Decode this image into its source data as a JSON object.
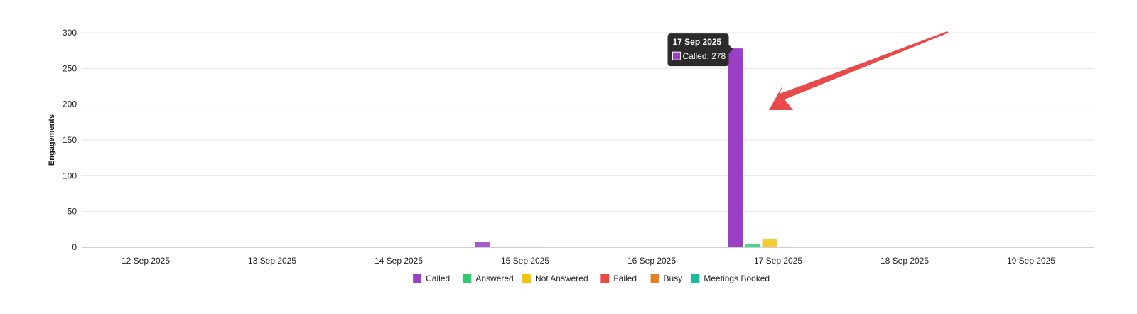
{
  "chart_data": {
    "type": "bar",
    "ylabel": "Engagements",
    "xlabel": "",
    "ylim": [
      0,
      300
    ],
    "yticks": [
      0,
      50,
      100,
      150,
      200,
      250,
      300
    ],
    "grid": true,
    "legend_position": "bottom",
    "categories": [
      "12 Sep 2025",
      "13 Sep 2025",
      "14 Sep 2025",
      "15 Sep 2025",
      "16 Sep 2025",
      "17 Sep 2025",
      "18 Sep 2025",
      "19 Sep 2025"
    ],
    "series": [
      {
        "name": "Called",
        "color": "#9b3fc4",
        "values": [
          0,
          0,
          0,
          7,
          0,
          278,
          0,
          0
        ]
      },
      {
        "name": "Answered",
        "color": "#2ecc71",
        "values": [
          0,
          0,
          0,
          1,
          0,
          4,
          0,
          0
        ]
      },
      {
        "name": "Not Answered",
        "color": "#f1c40f",
        "values": [
          0,
          0,
          0,
          1,
          0,
          11,
          0,
          0
        ]
      },
      {
        "name": "Failed",
        "color": "#e74c3c",
        "values": [
          0,
          0,
          0,
          1,
          0,
          1,
          0,
          0
        ]
      },
      {
        "name": "Busy",
        "color": "#e67e22",
        "values": [
          0,
          0,
          0,
          0.3,
          0,
          0,
          0,
          0
        ]
      },
      {
        "name": "Meetings Booked",
        "color": "#1abc9c",
        "values": [
          0,
          0,
          0,
          0,
          0,
          0,
          0,
          0
        ]
      }
    ],
    "tooltip": {
      "title": "17 Sep 2025",
      "series": "Called",
      "text": "Called: 278"
    },
    "annotation": {
      "type": "arrow",
      "color": "#e84a4a",
      "points_to": "17 Sep 2025 Called bar"
    }
  }
}
